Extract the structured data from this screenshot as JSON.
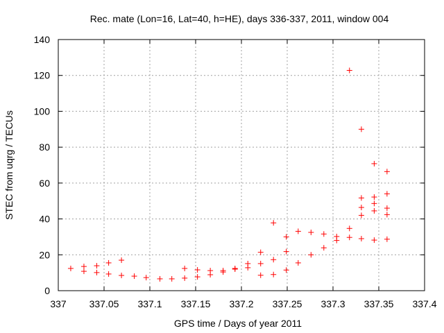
{
  "chart_data": {
    "type": "scatter",
    "title": "Rec. mate (Lon=16, Lat=40, h=HE), days 336-337, 2011, window 004",
    "xlabel": "GPS time / Days of year 2011",
    "ylabel": "STEC from uqrg / TECUs",
    "xlim": [
      337,
      337.4
    ],
    "ylim": [
      0,
      140
    ],
    "xticks": [
      "337",
      "337.05",
      "337.1",
      "337.15",
      "337.2",
      "337.25",
      "337.3",
      "337.35",
      "337.4"
    ],
    "yticks": [
      "0",
      "20",
      "40",
      "60",
      "80",
      "100",
      "120",
      "140"
    ],
    "grid": true,
    "marker": "plus",
    "color": "#ff0000",
    "series": [
      {
        "name": "STEC",
        "points": [
          [
            337.0136,
            12.4
          ],
          [
            337.028,
            13.5
          ],
          [
            337.028,
            10.8
          ],
          [
            337.042,
            13.9
          ],
          [
            337.042,
            10.1
          ],
          [
            337.055,
            15.5
          ],
          [
            337.055,
            9.3
          ],
          [
            337.069,
            17.0
          ],
          [
            337.069,
            8.5
          ],
          [
            337.083,
            8.1
          ],
          [
            337.096,
            7.3
          ],
          [
            337.111,
            6.6
          ],
          [
            337.124,
            6.6
          ],
          [
            337.138,
            12.4
          ],
          [
            337.138,
            7.0
          ],
          [
            337.152,
            11.6
          ],
          [
            337.152,
            7.7
          ],
          [
            337.166,
            11.2
          ],
          [
            337.166,
            8.9
          ],
          [
            337.18,
            11.2
          ],
          [
            337.18,
            10.4
          ],
          [
            337.193,
            12.4
          ],
          [
            337.193,
            12.0
          ],
          [
            337.207,
            15.1
          ],
          [
            337.207,
            12.8
          ],
          [
            337.221,
            21.4
          ],
          [
            337.221,
            15.1
          ],
          [
            337.221,
            8.6
          ],
          [
            337.235,
            37.8
          ],
          [
            337.235,
            17.3
          ],
          [
            337.235,
            9.0
          ],
          [
            337.249,
            30.0
          ],
          [
            337.249,
            21.8
          ],
          [
            337.249,
            11.5
          ],
          [
            337.262,
            33.1
          ],
          [
            337.262,
            15.5
          ],
          [
            337.276,
            32.5
          ],
          [
            337.276,
            20.0
          ],
          [
            337.29,
            31.6
          ],
          [
            337.29,
            23.9
          ],
          [
            337.304,
            30.2
          ],
          [
            337.304,
            28.0
          ],
          [
            337.318,
            122.8
          ],
          [
            337.318,
            34.7
          ],
          [
            337.318,
            29.7
          ],
          [
            337.331,
            90.0
          ],
          [
            337.331,
            51.7
          ],
          [
            337.331,
            46.4
          ],
          [
            337.331,
            42.0
          ],
          [
            337.331,
            29.0
          ],
          [
            337.345,
            70.8
          ],
          [
            337.345,
            52.2
          ],
          [
            337.345,
            48.6
          ],
          [
            337.345,
            44.5
          ],
          [
            337.345,
            28.2
          ],
          [
            337.359,
            66.4
          ],
          [
            337.359,
            54.0
          ],
          [
            337.359,
            46.0
          ],
          [
            337.359,
            42.4
          ],
          [
            337.359,
            28.7
          ]
        ]
      }
    ]
  }
}
